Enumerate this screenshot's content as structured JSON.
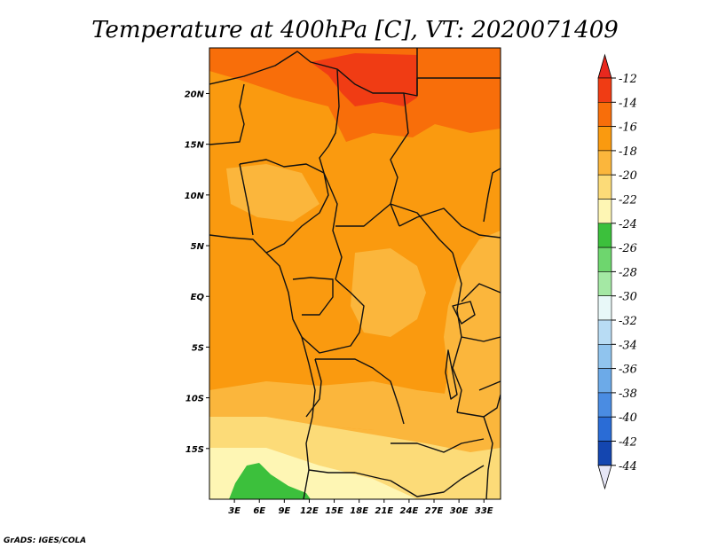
{
  "chart_data": {
    "type": "heatmap",
    "title": "Temperature at 400hPa [C], VT: 2020071409",
    "x_ticks": [
      "3E",
      "6E",
      "9E",
      "12E",
      "15E",
      "18E",
      "21E",
      "24E",
      "27E",
      "30E",
      "33E"
    ],
    "x_values": [
      3,
      6,
      9,
      12,
      15,
      18,
      21,
      24,
      27,
      30,
      33
    ],
    "y_ticks": [
      "20N",
      "15N",
      "10N",
      "5N",
      "EQ",
      "5S",
      "10S",
      "15S"
    ],
    "y_values": [
      20,
      15,
      10,
      5,
      0,
      -5,
      -10,
      -15
    ],
    "xlim": [
      0,
      35
    ],
    "ylim": [
      -20,
      24.5
    ],
    "colorbar": {
      "labels": [
        "-12",
        "-14",
        "-16",
        "-18",
        "-20",
        "-22",
        "-24",
        "-26",
        "-28",
        "-30",
        "-32",
        "-34",
        "-36",
        "-38",
        "-40",
        "-42",
        "-44"
      ],
      "levels": [
        -12,
        -14,
        -16,
        -18,
        -20,
        -22,
        -24,
        -26,
        -28,
        -30,
        -32,
        -34,
        -36,
        -38,
        -40,
        -42,
        -44
      ],
      "colors": [
        "#f03c14",
        "#f86e0a",
        "#fa9a0f",
        "#fbb63c",
        "#fcdb78",
        "#fef6b4",
        "#3cc03c",
        "#6ed66e",
        "#a4e8a4",
        "#e8f8f8",
        "#b8dcf4",
        "#90c4ee",
        "#6caae8",
        "#4a8ce2",
        "#2a6cd6",
        "#1446b0",
        "#0c1478"
      ],
      "upper_extend_color": "#e8281e",
      "lower_extend_color": "#e6e6f6"
    },
    "field_regions": [
      {
        "level": "-12 to -14",
        "description": "northern Sahara band around 21-24N"
      },
      {
        "level": "-14 to -16",
        "description": "northern half of domain and eastern Africa"
      },
      {
        "level": "-16 to -18",
        "description": "central Africa, Angola, Congo basin"
      },
      {
        "level": "-18 to -20",
        "description": "southern Angola / Zambia around 13-18S"
      },
      {
        "level": "-20 to -22",
        "description": "far south-west near 17-20S"
      },
      {
        "level": "-22 to -24",
        "description": "small green patch near 5E, 18-20S"
      }
    ],
    "credit": "GrADS: IGES/COLA"
  }
}
